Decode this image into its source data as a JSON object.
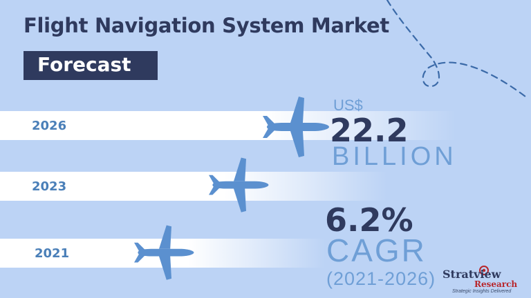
{
  "title": "Flight Navigation System Market",
  "badge": "Forecast",
  "years": [
    "2026",
    "2023",
    "2021"
  ],
  "market_size": {
    "currency": "US$",
    "value": "22.2",
    "unit": "BILLION"
  },
  "growth": {
    "value": "6.2%",
    "label": "CAGR",
    "period": "(2021-2026)"
  },
  "logo": {
    "brand_line1": "Stratview",
    "brand_line2": "Research",
    "tagline": "Strategic Insights Delivered"
  },
  "colors": {
    "background": "#bcd3f5",
    "navy": "#2f3a5e",
    "accent_blue": "#6f9fd6",
    "plane_blue": "#5b90cf",
    "year_blue": "#4a7fb8",
    "logo_red": "#b8262b"
  },
  "icons": {
    "plane": "airplane-icon",
    "flight_path": "dashed-flight-path"
  }
}
